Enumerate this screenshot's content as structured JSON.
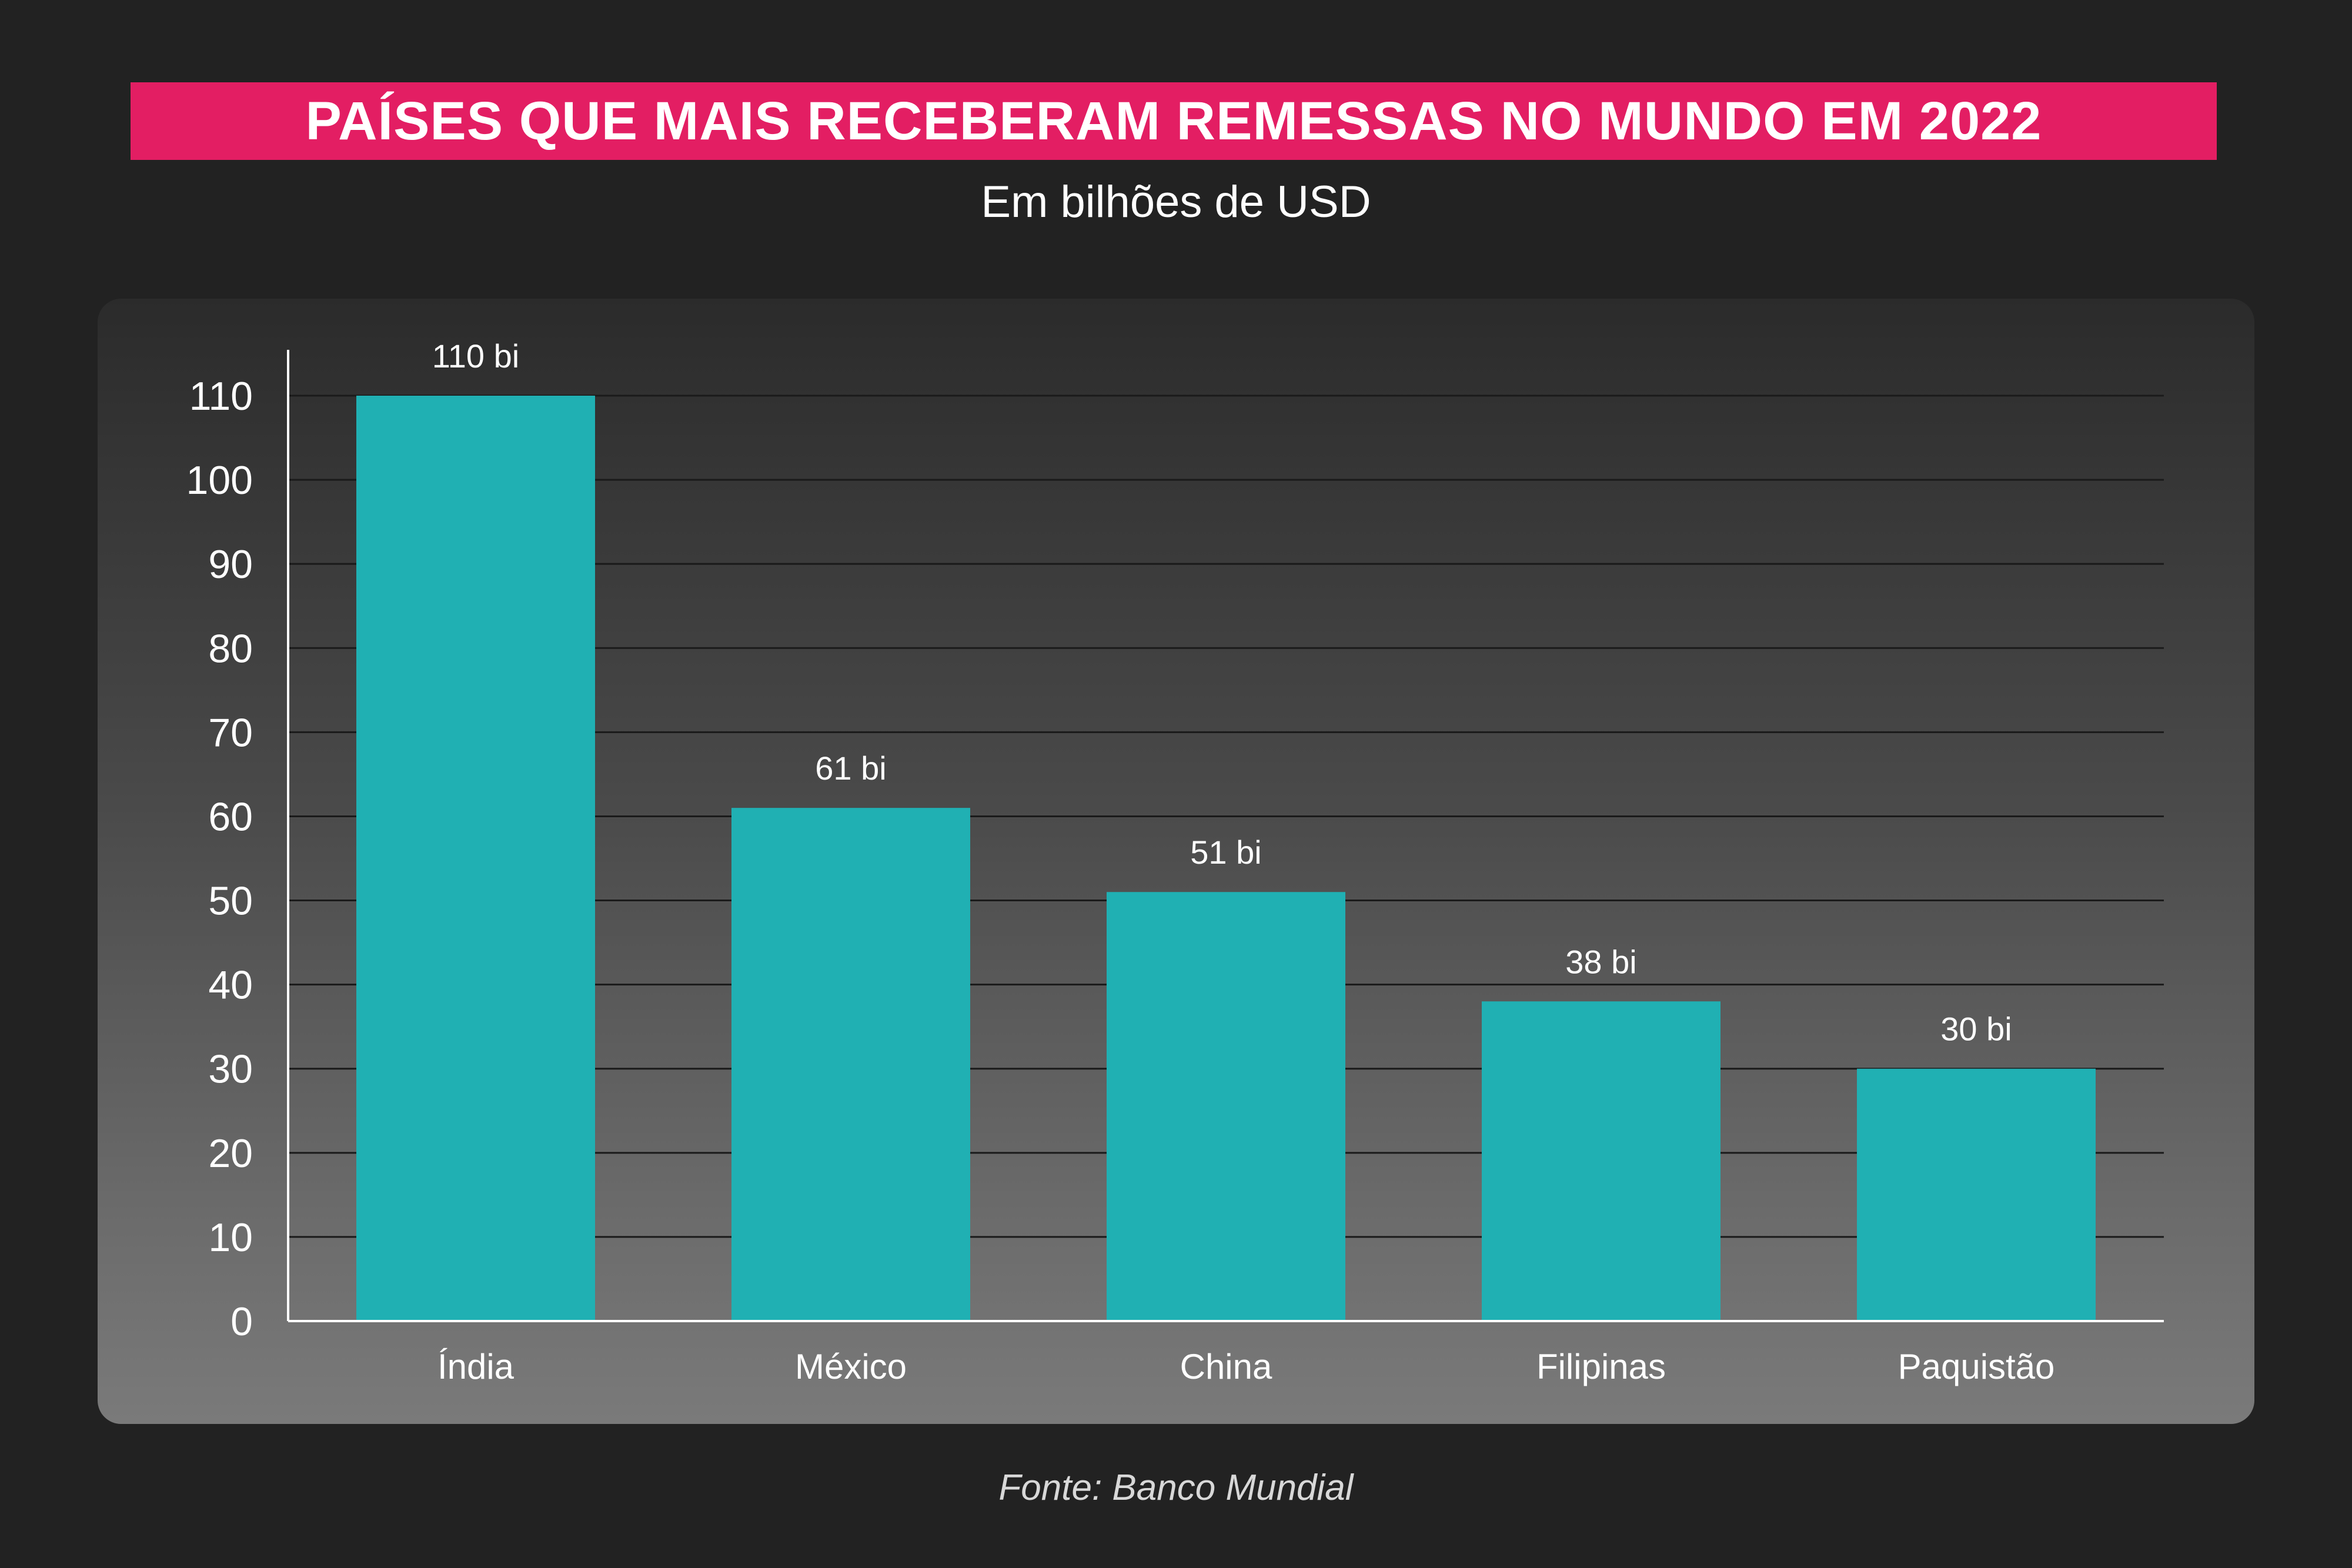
{
  "title": "PAÍSES QUE MAIS RECEBERAM REMESSAS NO MUNDO EM 2022",
  "subtitle": "Em bilhões de USD",
  "source": "Fonte: Banco Mundial",
  "colors": {
    "title_bar": "#e31e63",
    "bar": "#20b0b3",
    "background": "#222222"
  },
  "chart_data": {
    "type": "bar",
    "categories": [
      "Índia",
      "México",
      "China",
      "Filipinas",
      "Paquistão"
    ],
    "values": [
      110,
      61,
      51,
      38,
      30
    ],
    "data_labels": [
      "110 bi",
      "61 bi",
      "51 bi",
      "38 bi",
      "30 bi"
    ],
    "yticks": [
      0,
      10,
      20,
      30,
      40,
      50,
      60,
      70,
      80,
      90,
      100,
      110
    ],
    "ylim": [
      0,
      110
    ],
    "grid": true,
    "xlabel": "",
    "ylabel": ""
  }
}
